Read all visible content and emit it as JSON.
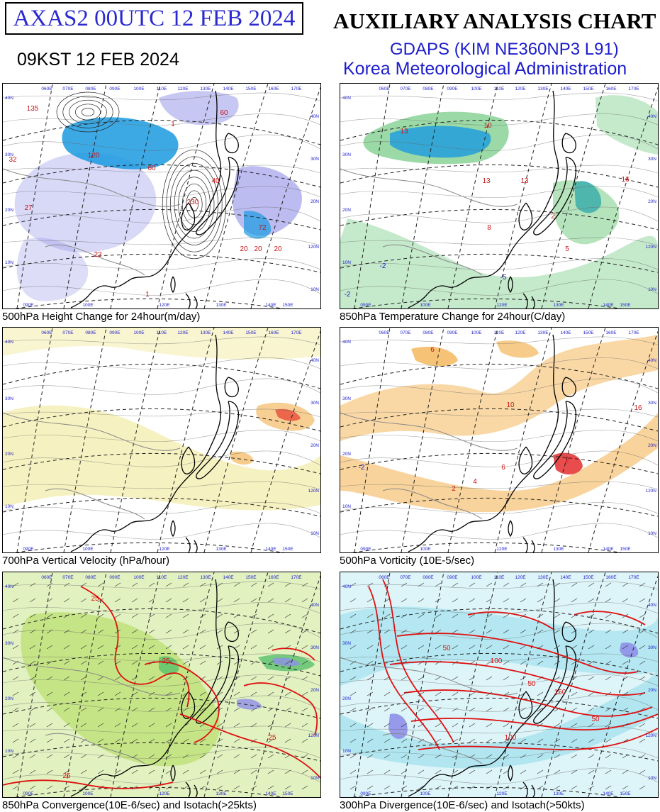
{
  "header": {
    "run_label": "AXAS2  00UTC 12 FEB 2024",
    "chart_title": "AUXILIARY ANALYSIS CHART II",
    "local_time": "09KST 12 FEB 2024",
    "model": "GDAPS (KIM NE360NP3 L91)",
    "agency": "Korea Meteorological Administration"
  },
  "colors": {
    "label_blue": "#1d1dcc",
    "height_fall": "#8f8fe8",
    "height_fall_strong": "#1a9ae0",
    "temp_green": "#58c06a",
    "vv_yellow": "#f4eeb0",
    "vort_orange": "#f2a83a",
    "conv_green": "#a9d84a",
    "div_cyan": "#9ee0ec",
    "isotach_red": "#e01010"
  },
  "panels": [
    {
      "id": "height-change",
      "caption": "500hPa Height Change for 24hour(m/day)",
      "values": [
        "135",
        "60",
        "120",
        "230",
        "40",
        "20",
        "60",
        "27",
        "23",
        "32",
        "20",
        "1",
        "72",
        "20",
        "1"
      ],
      "lon_labels": [
        "060E",
        "070E",
        "080E",
        "090E",
        "100E",
        "110E",
        "120E",
        "130E",
        "140E",
        "150E",
        "160E",
        "170E"
      ],
      "lat_labels": [
        "40N",
        "30N",
        "20N",
        "10N"
      ],
      "bottom_labels": [
        "090E",
        "100E",
        "120E",
        "130E",
        "140E",
        "150E"
      ],
      "right_labels": [
        "40N",
        "30N",
        "20N",
        "120N",
        "10N"
      ]
    },
    {
      "id": "temp-change",
      "caption": "850hPa Temperature Change for 24hour(C/day)",
      "values": [
        "13",
        "10",
        "13",
        "13",
        "16",
        "8",
        "-5",
        "-2",
        "5",
        "2",
        "-2"
      ],
      "lon_labels": [
        "060E",
        "070E",
        "080E",
        "090E",
        "100E",
        "110E",
        "120E",
        "130E",
        "140E",
        "150E",
        "160E",
        "170E"
      ],
      "lat_labels": [
        "40N",
        "30N",
        "20N",
        "10N"
      ],
      "bottom_labels": [
        "090E",
        "100E",
        "120E",
        "130E",
        "140E",
        "150E"
      ],
      "right_labels": [
        "40N",
        "30N",
        "20N",
        "120N",
        "10N"
      ]
    },
    {
      "id": "vertical-velocity",
      "caption": "700hPa Vertical Velocity (hPa/hour)",
      "values": [],
      "lon_labels": [
        "060E",
        "070E",
        "080E",
        "090E",
        "100E",
        "110E",
        "120E",
        "130E",
        "140E",
        "150E",
        "160E",
        "170E"
      ],
      "lat_labels": [
        "40N",
        "30N",
        "20N",
        "10N"
      ],
      "bottom_labels": [
        "090E",
        "100E",
        "120E",
        "130E",
        "140E",
        "150E"
      ],
      "right_labels": [
        "40N",
        "30N",
        "20N",
        "120N",
        "10N"
      ]
    },
    {
      "id": "vorticity",
      "caption": "500hPa Vorticity (10E-5/sec)",
      "values": [
        "6",
        "10",
        "-2",
        "2",
        "6",
        "4",
        "2",
        "16"
      ],
      "lon_labels": [
        "060E",
        "070E",
        "080E",
        "090E",
        "100E",
        "110E",
        "120E",
        "130E",
        "140E",
        "150E",
        "160E",
        "170E"
      ],
      "lat_labels": [
        "40N",
        "30N",
        "20N",
        "10N"
      ],
      "bottom_labels": [
        "090E",
        "100E",
        "120E",
        "130E",
        "140E",
        "150E"
      ],
      "right_labels": [
        "40N",
        "30N",
        "20N",
        "120N",
        "10N"
      ]
    },
    {
      "id": "convergence",
      "caption": "850hPa Convergence(10E-6/sec) and Isotach(>25kts)",
      "values": [
        "25",
        "25",
        "25",
        "25"
      ],
      "lon_labels": [
        "060E",
        "070E",
        "080E",
        "090E",
        "100E",
        "110E",
        "120E",
        "130E",
        "140E",
        "150E",
        "160E",
        "170E"
      ],
      "lat_labels": [
        "40N",
        "30N",
        "20N",
        "10N"
      ],
      "bottom_labels": [
        "090E",
        "100E",
        "120E",
        "130E",
        "140E",
        "150E"
      ],
      "right_labels": [
        "40N",
        "30N",
        "20N",
        "120N",
        "10N"
      ]
    },
    {
      "id": "divergence",
      "caption": "300hPa Divergence(10E-6/sec) and Isotach(>50kts)",
      "values": [
        "50",
        "100",
        "50",
        "150",
        "50",
        "100"
      ],
      "lon_labels": [
        "060E",
        "070E",
        "080E",
        "090E",
        "100E",
        "110E",
        "120E",
        "130E",
        "140E",
        "150E",
        "160E",
        "170E"
      ],
      "lat_labels": [
        "40N",
        "30N",
        "20N",
        "10N"
      ],
      "bottom_labels": [
        "090E",
        "100E",
        "120E",
        "130E",
        "140E",
        "150E"
      ],
      "right_labels": [
        "40N",
        "30N",
        "20N",
        "120N",
        "10N"
      ]
    }
  ]
}
